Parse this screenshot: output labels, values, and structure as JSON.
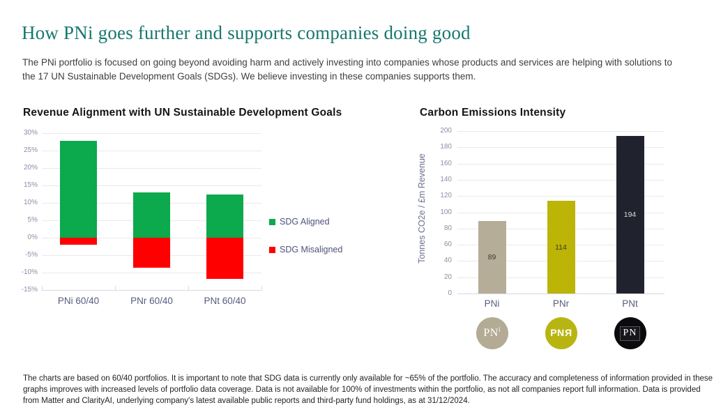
{
  "page": {
    "title": "How PNi goes further and supports companies doing good",
    "subtitle": "The PNi portfolio is focused on going beyond avoiding harm and actively investing into companies whose products and services are helping with solutions to the 17 UN Sustainable Development Goals (SDGs). We believe investing in these companies supports them.",
    "footnote": "The charts are based on 60/40 portfolios. It is important to note that SDG data is currently only available for ~65% of the portfolio. The accuracy and completeness of information provided in these graphs improves with increased levels of portfolio data coverage. Data is not available for 100% of investments within the portfolio, as not all companies report full information. Data is provided from Matter and ClarityAI, underlying company's latest available public reports and third-party fund holdings, as at 31/12/2024."
  },
  "theme": {
    "title_color": "#17786E",
    "axis_text_color": "#8A8EA8",
    "category_text_color": "#575C7F",
    "grid_color": "#E9E9EF"
  },
  "chart_data": [
    {
      "type": "bar",
      "stacked": true,
      "title": "Revenue Alignment with UN Sustainable Development Goals",
      "categories": [
        "PNi 60/40",
        "PNr 60/40",
        "PNt 60/40"
      ],
      "series": [
        {
          "name": "SDG Aligned",
          "color": "#0CA94D",
          "values": [
            27.8,
            13.0,
            12.4
          ]
        },
        {
          "name": "SDG Misaligned",
          "color": "#FE0000",
          "values": [
            -2.0,
            -8.5,
            -11.7
          ]
        }
      ],
      "ylim": [
        -15,
        30
      ],
      "ytick_step": 5,
      "ytick_suffix": "%",
      "grid": true,
      "legend_position": "right"
    },
    {
      "type": "bar",
      "title": "Carbon Emissions Intensity",
      "ylabel": "Tonnes CO2e / £m Revenue",
      "categories": [
        "PNi",
        "PNr",
        "PNt"
      ],
      "values": [
        89,
        114,
        194
      ],
      "bar_colors": [
        "#B5AD97",
        "#BCB407",
        "#20232E"
      ],
      "data_labels": [
        "89",
        "114",
        "194"
      ],
      "data_label_colors": [
        "#3A3A33",
        "#3A3A1E",
        "#DCDCE0"
      ],
      "ylim": [
        0,
        200
      ],
      "ytick_step": 20,
      "grid": true
    }
  ],
  "logos": [
    {
      "label": "PNi",
      "main": "PN",
      "suffix": "i",
      "bg": "#B3AB94"
    },
    {
      "label": "PNR",
      "main": "PN",
      "suffix": "R",
      "bg": "#B8B513"
    },
    {
      "label": "PN",
      "main": "PN",
      "suffix": "",
      "bg": "#0B0B0D"
    }
  ]
}
